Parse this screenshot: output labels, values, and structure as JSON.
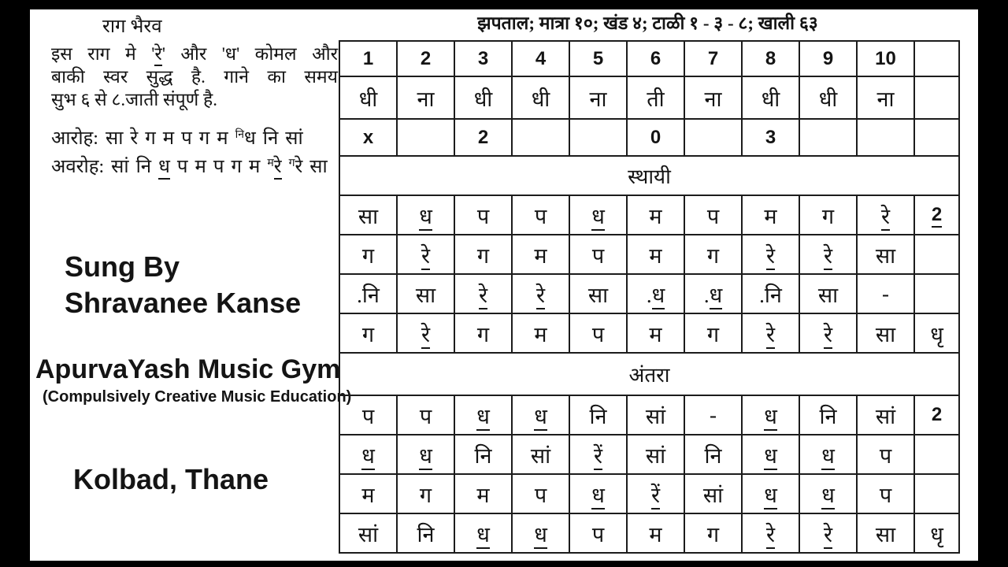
{
  "colors": {
    "background": "#000000",
    "paper": "#ffffff",
    "ink": "#141414"
  },
  "left_panel": {
    "title": "राग भैरव",
    "description_lines": [
      "इस राग मे '_रे_' और 'ध' कोमल और",
      "बाकी स्वर सुद्ध है. गाने का समय",
      "सुभ ६ से ८.जाती संपूर्ण है."
    ],
    "aroha": "आरोह: सा रे ग म प ग म ^नि^ध नि सां",
    "avaroha": "अवरोह: सां नि _ध_ प म प ग म ^म^_रे_ ^ग^रे सा",
    "credits": {
      "sung_by": "Sung By",
      "singer": "Shravanee Kanse",
      "school": "ApurvaYash Music Gym",
      "tagline": "(Compulsively Creative Music Education)",
      "location": "Kolbad, Thane"
    }
  },
  "header": {
    "taal_info": "झपताल; मात्रा १०; खंड ४; टाळी १ - ३ - ८; खाली ६३"
  },
  "notation": {
    "beat_numbers": [
      "1",
      "2",
      "3",
      "4",
      "5",
      "6",
      "7",
      "8",
      "9",
      "10",
      ""
    ],
    "theka": [
      "धी",
      "ना",
      "धी",
      "धी",
      "ना",
      "ती",
      "ना",
      "धी",
      "धी",
      "ना",
      ""
    ],
    "taali_row": [
      "x",
      "",
      "2",
      "",
      "",
      "0",
      "",
      "3",
      "",
      "",
      ""
    ],
    "sections": [
      {
        "name": "स्थायी",
        "rows": [
          [
            "सा",
            "_ध_",
            "प",
            "प",
            "_ध_",
            "म",
            "प",
            "म",
            "ग",
            "_रे_",
            "_2_"
          ],
          [
            "ग",
            "_रे_",
            "ग",
            "म",
            "प",
            "म",
            "ग",
            "_रे_",
            "_रे_",
            "सा",
            ""
          ],
          [
            ".नि",
            "सा",
            "_रे_",
            "_रे_",
            "सा",
            "._ध_",
            "._ध_",
            ".नि",
            "सा",
            "-",
            ""
          ],
          [
            "ग",
            "_रे_",
            "ग",
            "म",
            "प",
            "म",
            "ग",
            "_रे_",
            "_रे_",
            "सा",
            "धृ"
          ]
        ]
      },
      {
        "name": "अंतरा",
        "rows": [
          [
            "प",
            "प",
            "_ध_",
            "_ध_",
            "नि",
            "सां",
            "-",
            "_ध_",
            "नि",
            "सां",
            "2"
          ],
          [
            "_ध_",
            "_ध_",
            "नि",
            "सां",
            "_रें_",
            "सां",
            "नि",
            "_ध_",
            "_ध_",
            "प",
            ""
          ],
          [
            "म",
            "ग",
            "म",
            "प",
            "_ध_",
            "_रें_",
            "सां",
            "_ध_",
            "_ध_",
            "प",
            ""
          ],
          [
            "सां",
            "नि",
            "_ध_",
            "_ध_",
            "प",
            "म",
            "ग",
            "_रे_",
            "_रे_",
            "सा",
            "धृ"
          ]
        ]
      }
    ]
  }
}
